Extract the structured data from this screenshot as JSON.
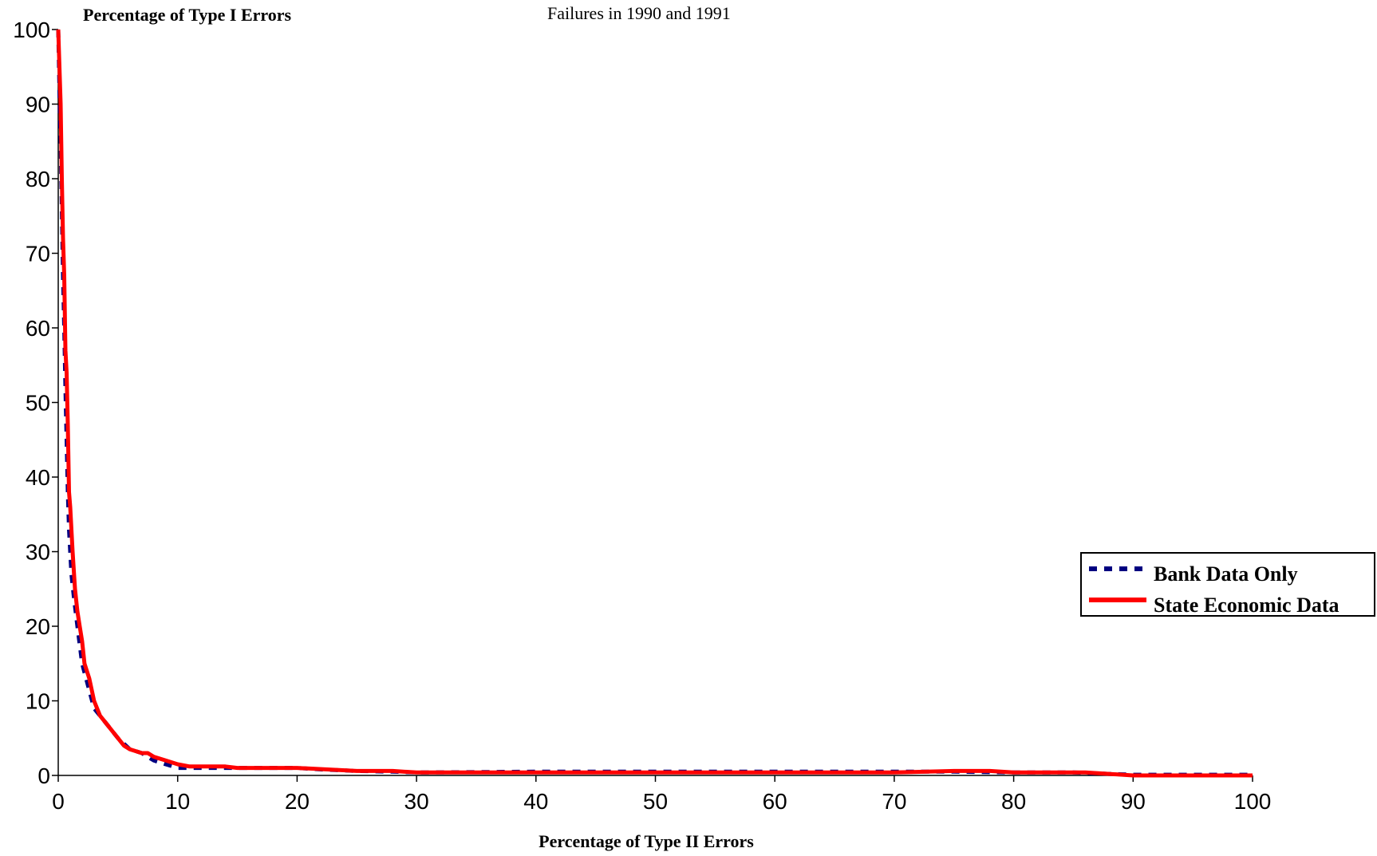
{
  "chart_data": {
    "type": "line",
    "title": "Failures in 1990 and 1991",
    "xlabel": "Percentage of Type II Errors",
    "ylabel": "Percentage of Type I Errors",
    "xlim": [
      0,
      100
    ],
    "ylim": [
      0,
      100
    ],
    "xticks": [
      0,
      10,
      20,
      30,
      40,
      50,
      60,
      70,
      80,
      90,
      100
    ],
    "yticks": [
      0,
      10,
      20,
      30,
      40,
      50,
      60,
      70,
      80,
      90,
      100
    ],
    "grid": false,
    "legend_position": "right",
    "series": [
      {
        "name": "Bank Data Only",
        "color": "#000080",
        "style": "dashed",
        "points": [
          [
            0,
            100
          ],
          [
            0.1,
            92
          ],
          [
            0.2,
            85
          ],
          [
            0.3,
            76
          ],
          [
            0.4,
            67
          ],
          [
            0.5,
            60
          ],
          [
            0.6,
            52
          ],
          [
            0.7,
            45
          ],
          [
            0.8,
            38
          ],
          [
            0.9,
            33
          ],
          [
            1,
            30
          ],
          [
            1.1,
            27
          ],
          [
            1.3,
            24
          ],
          [
            1.6,
            20
          ],
          [
            2,
            15
          ],
          [
            2.5,
            12
          ],
          [
            3,
            9
          ],
          [
            3.5,
            8
          ],
          [
            4,
            7
          ],
          [
            4.5,
            6
          ],
          [
            5,
            5
          ],
          [
            6,
            3.5
          ],
          [
            7,
            3
          ],
          [
            8,
            2
          ],
          [
            9,
            1.5
          ],
          [
            10,
            1
          ],
          [
            12,
            1
          ],
          [
            15,
            1
          ],
          [
            20,
            1
          ],
          [
            22,
            0.8
          ],
          [
            25,
            0.6
          ],
          [
            28,
            0.5
          ],
          [
            30,
            0.4
          ],
          [
            40,
            0.5
          ],
          [
            50,
            0.5
          ],
          [
            60,
            0.5
          ],
          [
            70,
            0.5
          ],
          [
            75,
            0.5
          ],
          [
            80,
            0.4
          ],
          [
            85,
            0.4
          ],
          [
            88,
            0.2
          ],
          [
            90,
            0.1
          ],
          [
            95,
            0.1
          ],
          [
            100,
            0.1
          ]
        ]
      },
      {
        "name": "State Economic Data",
        "color": "#ff0000",
        "style": "solid",
        "points": [
          [
            0,
            100
          ],
          [
            0.1,
            95
          ],
          [
            0.2,
            90
          ],
          [
            0.3,
            80
          ],
          [
            0.4,
            72
          ],
          [
            0.5,
            67
          ],
          [
            0.6,
            57
          ],
          [
            0.7,
            54
          ],
          [
            0.8,
            47
          ],
          [
            0.9,
            38
          ],
          [
            1,
            36
          ],
          [
            1.1,
            33
          ],
          [
            1.2,
            30
          ],
          [
            1.4,
            25
          ],
          [
            1.6,
            22
          ],
          [
            1.8,
            20
          ],
          [
            2,
            18
          ],
          [
            2.2,
            15
          ],
          [
            2.6,
            13
          ],
          [
            3,
            10
          ],
          [
            3.5,
            8
          ],
          [
            4,
            7
          ],
          [
            4.5,
            6
          ],
          [
            5,
            5
          ],
          [
            5.5,
            4
          ],
          [
            6,
            3.5
          ],
          [
            7,
            3
          ],
          [
            7.5,
            3
          ],
          [
            8,
            2.5
          ],
          [
            9,
            2
          ],
          [
            10,
            1.5
          ],
          [
            11,
            1.2
          ],
          [
            14,
            1.2
          ],
          [
            15,
            1
          ],
          [
            20,
            1
          ],
          [
            25,
            0.6
          ],
          [
            28,
            0.6
          ],
          [
            30,
            0.4
          ],
          [
            40,
            0.4
          ],
          [
            50,
            0.4
          ],
          [
            60,
            0.4
          ],
          [
            70,
            0.4
          ],
          [
            75,
            0.6
          ],
          [
            78,
            0.6
          ],
          [
            80,
            0.4
          ],
          [
            86,
            0.4
          ],
          [
            88,
            0.2
          ],
          [
            90,
            0
          ],
          [
            95,
            0
          ],
          [
            100,
            0
          ]
        ]
      }
    ]
  }
}
